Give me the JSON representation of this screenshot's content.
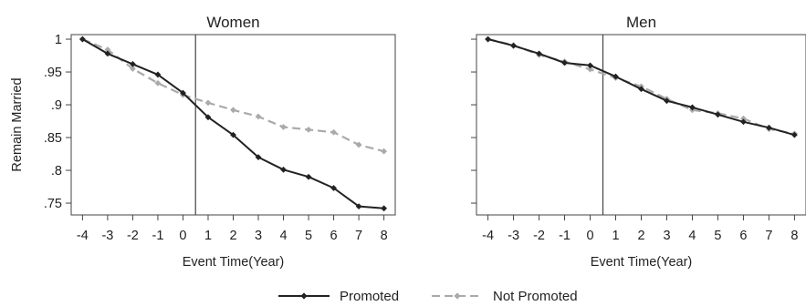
{
  "chart_data": [
    {
      "type": "line",
      "title": "Women",
      "xlabel": "Event Time(Year)",
      "ylabel": "Remain Married",
      "x": [
        -4,
        -3,
        -2,
        -1,
        0,
        1,
        2,
        3,
        4,
        5,
        6,
        7,
        8
      ],
      "x_ticks": [
        "-4",
        "-3",
        "-2",
        "-1",
        "0",
        "1",
        "2",
        "3",
        "4",
        "5",
        "6",
        "7",
        "8"
      ],
      "y_ticks": [
        "1",
        ".95",
        ".9",
        ".85",
        ".8",
        ".75"
      ],
      "xlim": [
        -4.45,
        8.45
      ],
      "ylim": [
        0.732,
        1.007
      ],
      "event_line_x": 0.5,
      "series": [
        {
          "name": "Promoted",
          "values": [
            1.0,
            0.978,
            0.962,
            0.946,
            0.918,
            0.881,
            0.854,
            0.82,
            0.801,
            0.79,
            0.773,
            0.745,
            0.742
          ]
        },
        {
          "name": "Not Promoted",
          "values": [
            1.0,
            0.984,
            0.955,
            0.933,
            0.915,
            0.903,
            0.892,
            0.882,
            0.866,
            0.862,
            0.858,
            0.839,
            0.829
          ]
        }
      ]
    },
    {
      "type": "line",
      "title": "Men",
      "xlabel": "Event Time(Year)",
      "ylabel": "",
      "x": [
        -4,
        -3,
        -2,
        -1,
        0,
        1,
        2,
        3,
        4,
        5,
        6,
        7,
        8
      ],
      "x_ticks": [
        "-4",
        "-3",
        "-2",
        "-1",
        "0",
        "1",
        "2",
        "3",
        "4",
        "5",
        "6",
        "7",
        "8"
      ],
      "y_ticks": [
        "1",
        ".95",
        ".9",
        ".85",
        ".8",
        ".75"
      ],
      "xlim": [
        -4.45,
        8.45
      ],
      "ylim": [
        0.732,
        1.007
      ],
      "event_line_x": 0.5,
      "series": [
        {
          "name": "Promoted",
          "values": [
            1.0,
            0.99,
            0.978,
            0.964,
            0.96,
            0.943,
            0.924,
            0.906,
            0.896,
            0.885,
            0.874,
            0.865,
            0.854
          ]
        },
        {
          "name": "Not Promoted",
          "values": [
            1.0,
            0.991,
            0.976,
            0.966,
            0.954,
            0.941,
            0.928,
            0.909,
            0.892,
            0.887,
            0.879,
            0.863,
            0.856
          ]
        }
      ]
    }
  ],
  "legend": {
    "items": [
      {
        "label": "Promoted",
        "color": "#222222",
        "dash": "solid"
      },
      {
        "label": "Not Promoted",
        "color": "#aaaaaa",
        "dash": "dashed"
      }
    ]
  },
  "colors": {
    "promoted": "#222222",
    "not_promoted": "#aaaaaa",
    "axis": "#444444"
  }
}
